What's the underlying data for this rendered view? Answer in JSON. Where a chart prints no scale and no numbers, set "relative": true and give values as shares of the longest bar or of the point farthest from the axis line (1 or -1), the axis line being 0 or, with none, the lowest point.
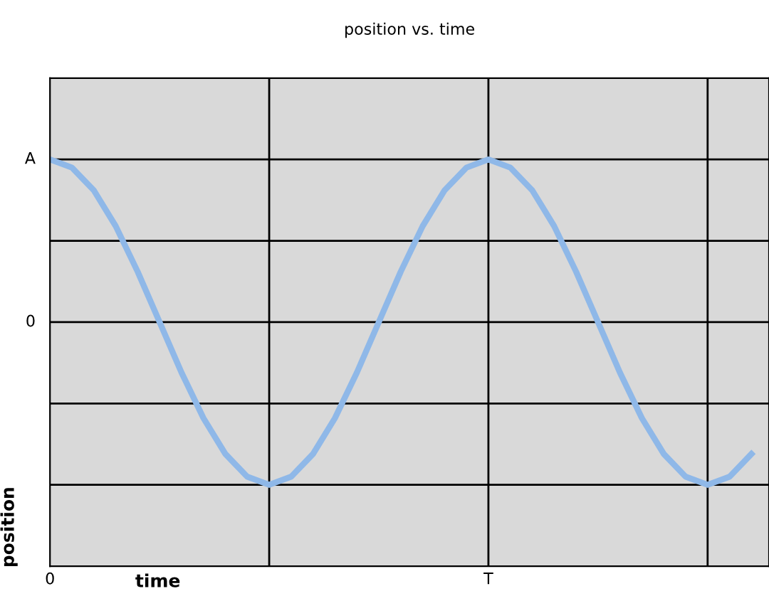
{
  "chart_data": {
    "type": "line",
    "title": "position vs. time",
    "xlabel": "time",
    "ylabel": "position",
    "relative": true,
    "categories": [
      "0",
      null,
      null,
      null,
      null,
      null,
      null,
      null,
      null,
      null,
      null,
      null,
      null,
      null,
      null,
      null,
      null,
      null,
      null,
      null,
      "T",
      null,
      null,
      null,
      null,
      null,
      null,
      null,
      null,
      null,
      null,
      null,
      null
    ],
    "series": [
      {
        "color": "#8fb8e8",
        "values": [
          1,
          0.95,
          0.81,
          0.59,
          0.31,
          0,
          -0.31,
          -0.59,
          -0.81,
          -0.95,
          -1,
          -0.95,
          -0.81,
          -0.59,
          -0.31,
          0,
          0.31,
          0.59,
          0.81,
          0.95,
          1,
          0.95,
          0.81,
          0.59,
          0.31,
          0,
          -0.31,
          -0.59,
          -0.81,
          -0.95,
          -1,
          -0.95,
          -0.81
        ]
      }
    ],
    "annotations": [
      "A",
      "0"
    ],
    "grid": true,
    "legend": false,
    "marker": "none",
    "line_style": "solid"
  }
}
